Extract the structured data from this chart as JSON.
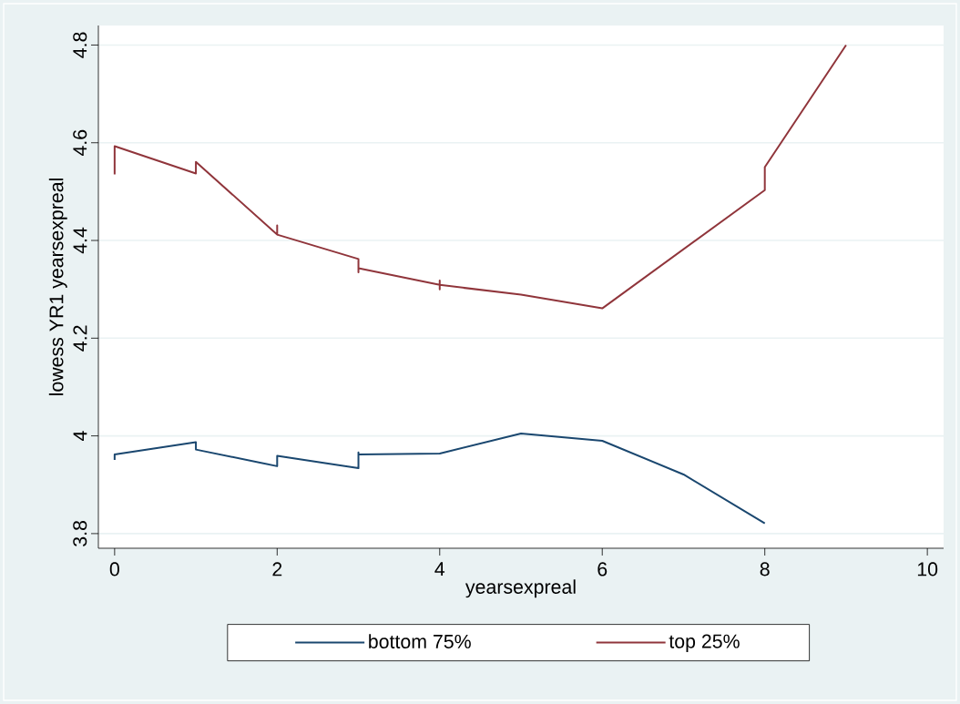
{
  "chart_data": {
    "type": "line",
    "xlabel": "yearsexpreal",
    "ylabel": "lowess YR1 yearsexpreal",
    "xlim": [
      -0.2,
      10.2
    ],
    "ylim": [
      3.77,
      4.84
    ],
    "xticks": [
      0,
      2,
      4,
      6,
      8,
      10
    ],
    "yticks": [
      3.8,
      4,
      4.2,
      4.4,
      4.6,
      4.8
    ],
    "grid": "y",
    "legend": "bottom",
    "series": [
      {
        "name": "bottom 75%",
        "color": "#1a476f",
        "x": [
          0,
          0,
          1,
          1,
          2,
          2,
          3,
          3,
          3,
          4,
          5,
          6,
          7,
          8
        ],
        "values": [
          3.951,
          3.962,
          3.987,
          3.972,
          3.938,
          3.959,
          3.934,
          3.966,
          3.962,
          3.964,
          4.005,
          3.99,
          3.921,
          3.821
        ]
      },
      {
        "name": "top 25%",
        "color": "#90353b",
        "x": [
          0,
          0,
          1,
          1,
          2,
          2,
          2,
          3,
          3,
          3,
          4,
          4,
          4,
          4,
          5,
          6,
          8,
          8,
          9
        ],
        "values": [
          4.535,
          4.593,
          4.537,
          4.561,
          4.412,
          4.431,
          4.412,
          4.362,
          4.335,
          4.343,
          4.309,
          4.318,
          4.3,
          4.309,
          4.289,
          4.261,
          4.503,
          4.55,
          4.8
        ]
      }
    ]
  }
}
